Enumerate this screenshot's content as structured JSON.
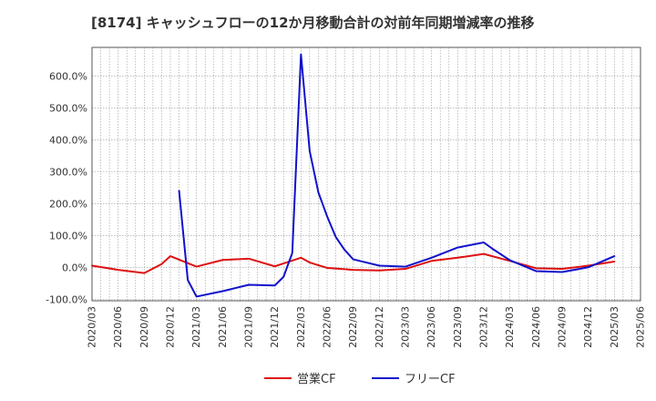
{
  "chart_data": {
    "type": "line",
    "title": "[8174]  キャッシュフローの12か月移動合計の対前年同期増減率の推移",
    "xlabel": "",
    "ylabel": "",
    "x_ticks": [
      "2020/03",
      "2020/06",
      "2020/09",
      "2020/12",
      "2021/03",
      "2021/06",
      "2021/09",
      "2021/12",
      "2022/03",
      "2022/06",
      "2022/09",
      "2022/12",
      "2023/03",
      "2023/06",
      "2023/09",
      "2023/12",
      "2024/03",
      "2024/06",
      "2024/09",
      "2024/12",
      "2025/03",
      "2025/06"
    ],
    "y_ticks": [
      -100,
      0,
      100,
      200,
      300,
      400,
      500,
      600
    ],
    "y_tick_labels": [
      "-100.0%",
      "0.0%",
      "100.0%",
      "200.0%",
      "300.0%",
      "400.0%",
      "500.0%",
      "600.0%"
    ],
    "xlim": [
      "2020/03",
      "2025/06"
    ],
    "ylim": [
      -105,
      690
    ],
    "grid": true,
    "legend_position": "bottom-center",
    "series": [
      {
        "name": "営業CF",
        "color": "#dd1111",
        "points": [
          [
            "2020/03",
            5
          ],
          [
            "2020/06",
            -8
          ],
          [
            "2020/09",
            -18
          ],
          [
            "2020/11",
            10
          ],
          [
            "2020/12",
            35
          ],
          [
            "2021/03",
            2
          ],
          [
            "2021/06",
            23
          ],
          [
            "2021/09",
            27
          ],
          [
            "2021/12",
            3
          ],
          [
            "2022/03",
            30
          ],
          [
            "2022/04",
            15
          ],
          [
            "2022/06",
            -2
          ],
          [
            "2022/09",
            -8
          ],
          [
            "2022/12",
            -10
          ],
          [
            "2023/03",
            -5
          ],
          [
            "2023/06",
            20
          ],
          [
            "2023/09",
            30
          ],
          [
            "2023/12",
            42
          ],
          [
            "2024/03",
            20
          ],
          [
            "2024/06",
            -3
          ],
          [
            "2024/09",
            -5
          ],
          [
            "2024/12",
            5
          ],
          [
            "2025/03",
            18
          ]
        ]
      },
      {
        "name": "フリーCF",
        "color": "#1111cc",
        "points": [
          [
            "2021/01",
            240
          ],
          [
            "2021/02",
            -40
          ],
          [
            "2021/03",
            -92
          ],
          [
            "2021/06",
            -75
          ],
          [
            "2021/09",
            -55
          ],
          [
            "2021/12",
            -57
          ],
          [
            "2022/01",
            -30
          ],
          [
            "2022/02",
            45
          ],
          [
            "2022/03",
            668
          ],
          [
            "2022/04",
            365
          ],
          [
            "2022/05",
            235
          ],
          [
            "2022/06",
            160
          ],
          [
            "2022/07",
            95
          ],
          [
            "2022/08",
            55
          ],
          [
            "2022/09",
            25
          ],
          [
            "2022/12",
            5
          ],
          [
            "2023/03",
            2
          ],
          [
            "2023/06",
            30
          ],
          [
            "2023/09",
            62
          ],
          [
            "2023/12",
            78
          ],
          [
            "2024/01",
            58
          ],
          [
            "2024/03",
            22
          ],
          [
            "2024/06",
            -12
          ],
          [
            "2024/09",
            -15
          ],
          [
            "2024/12",
            0
          ],
          [
            "2025/03",
            35
          ]
        ]
      }
    ]
  }
}
